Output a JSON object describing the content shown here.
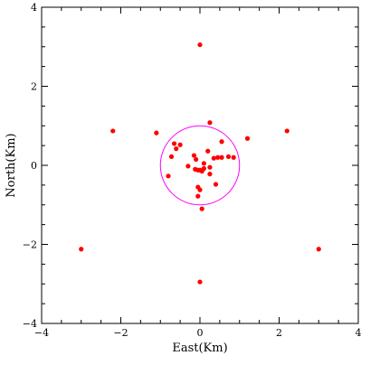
{
  "chart_data": {
    "type": "scatter",
    "xlabel": "East(Km)",
    "ylabel": "North(Km)",
    "xlim": [
      -4,
      4
    ],
    "ylim": [
      -4,
      4
    ],
    "xticks": [
      -4,
      -2,
      0,
      2,
      4
    ],
    "yticks": [
      -4,
      -2,
      0,
      2,
      4
    ],
    "xtick_labels": [
      "−4",
      "−2",
      "0",
      "2",
      "4"
    ],
    "ytick_labels": [
      "−4",
      "−2",
      "0",
      "2",
      "4"
    ],
    "grid": false,
    "colors": {
      "points": "#ff0000",
      "circle": "#ff00ff",
      "axes": "#000000"
    },
    "circle": {
      "center": [
        0,
        0
      ],
      "radius": 1.0
    },
    "series": [
      {
        "points": [
          [
            0.0,
            3.05
          ],
          [
            -2.2,
            0.87
          ],
          [
            2.2,
            0.87
          ],
          [
            -3.0,
            -2.12
          ],
          [
            3.0,
            -2.12
          ],
          [
            0.0,
            -2.95
          ],
          [
            -1.1,
            0.82
          ],
          [
            0.25,
            1.08
          ],
          [
            1.2,
            0.68
          ],
          [
            -0.65,
            0.55
          ],
          [
            -0.5,
            0.52
          ],
          [
            -0.6,
            0.42
          ],
          [
            0.55,
            0.6
          ],
          [
            0.2,
            0.36
          ],
          [
            0.45,
            0.2
          ],
          [
            0.35,
            0.18
          ],
          [
            0.55,
            0.2
          ],
          [
            0.72,
            0.22
          ],
          [
            0.85,
            0.2
          ],
          [
            -0.72,
            0.22
          ],
          [
            -0.15,
            0.25
          ],
          [
            -0.1,
            0.15
          ],
          [
            0.1,
            0.05
          ],
          [
            0.25,
            -0.05
          ],
          [
            -0.3,
            -0.02
          ],
          [
            -0.12,
            -0.1
          ],
          [
            -0.05,
            -0.12
          ],
          [
            0.0,
            -0.12
          ],
          [
            0.05,
            -0.15
          ],
          [
            0.1,
            -0.08
          ],
          [
            -0.8,
            -0.27
          ],
          [
            0.4,
            -0.48
          ],
          [
            -0.05,
            -0.55
          ],
          [
            0.0,
            -0.62
          ],
          [
            -0.05,
            -0.78
          ],
          [
            0.05,
            -1.1
          ],
          [
            0.25,
            -0.22
          ]
        ]
      }
    ]
  }
}
